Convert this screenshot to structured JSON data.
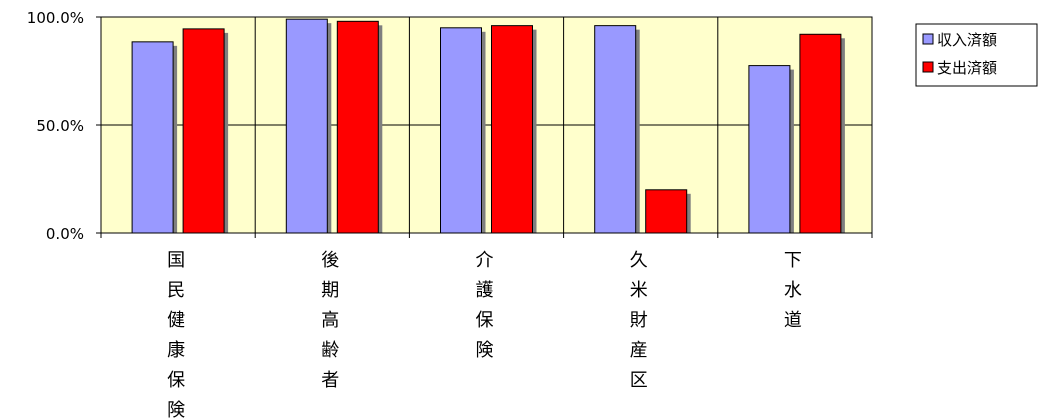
{
  "chart_data": {
    "type": "bar",
    "categories": [
      "国民健康保険",
      "後期高齢者",
      "介護保険",
      "久米財産区",
      "下水道"
    ],
    "series": [
      {
        "name": "収入済額",
        "values": [
          88.5,
          99.0,
          95.0,
          96.0,
          77.5
        ],
        "color": "#9999ff"
      },
      {
        "name": "支出済額",
        "values": [
          94.5,
          98.0,
          96.0,
          20.0,
          92.0
        ],
        "color": "#ff0000"
      }
    ],
    "yticks": [
      "0.0%",
      "50.0%",
      "100.0%"
    ],
    "ylim": [
      0,
      100
    ],
    "grid": true,
    "legend_position": "right",
    "plot_background": "#ffffcc"
  }
}
